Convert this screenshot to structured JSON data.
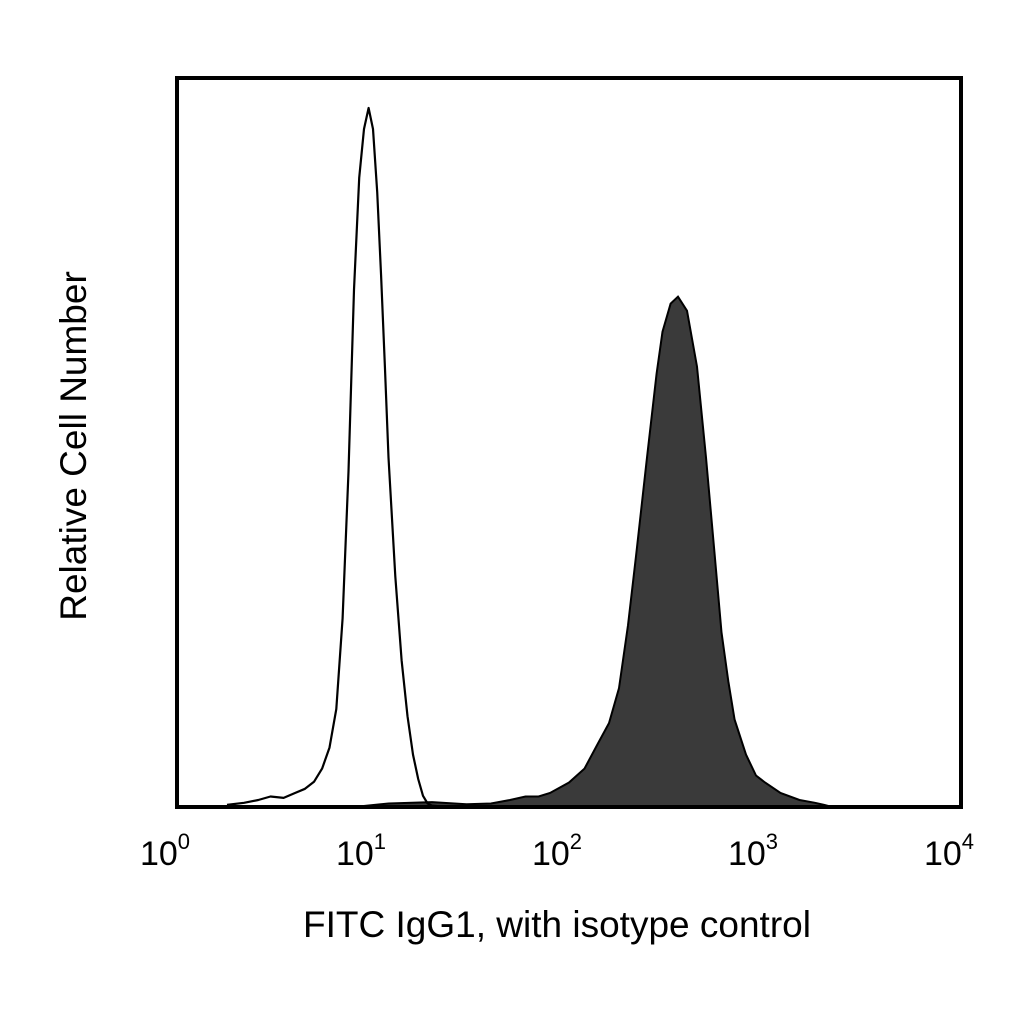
{
  "chart_data": {
    "type": "area",
    "xscale": "log",
    "xlim": [
      1,
      10000
    ],
    "ylim": [
      0,
      100
    ],
    "grid": false,
    "xlabel": "FITC IgG1, with isotype control",
    "ylabel": "Relative Cell Number",
    "xticks": [
      {
        "value": 1,
        "base": "10",
        "exp": "0"
      },
      {
        "value": 10,
        "base": "10",
        "exp": "1"
      },
      {
        "value": 100,
        "base": "10",
        "exp": "2"
      },
      {
        "value": 1000,
        "base": "10",
        "exp": "3"
      },
      {
        "value": 10000,
        "base": "10",
        "exp": "4"
      }
    ],
    "series": [
      {
        "style": "outline",
        "color": "#000000",
        "x": [
          1.8,
          2.2,
          2.6,
          3.0,
          3.5,
          4.0,
          4.5,
          5.0,
          5.5,
          6.0,
          6.5,
          7.0,
          7.5,
          8.0,
          8.5,
          9.0,
          9.5,
          10.0,
          10.5,
          11.0,
          11.5,
          12.0,
          13.0,
          14.0,
          15.0,
          16.0,
          17.0,
          18.0,
          19.0,
          20.0,
          22.0,
          25.0
        ],
        "y": [
          0.3,
          0.6,
          1.0,
          1.5,
          1.3,
          2.0,
          2.6,
          3.6,
          5.5,
          8.5,
          14,
          27,
          48,
          74,
          90,
          97,
          100,
          97,
          88,
          76,
          63,
          50,
          33,
          21,
          13,
          7.5,
          4.0,
          1.6,
          0.5,
          0.2,
          0.1,
          0
        ]
      },
      {
        "style": "filled",
        "color": "#3a3a3a",
        "x": [
          8,
          12,
          20,
          30,
          40,
          50,
          60,
          70,
          80,
          100,
          120,
          140,
          160,
          180,
          200,
          220,
          250,
          280,
          300,
          330,
          360,
          400,
          450,
          500,
          550,
          600,
          650,
          700,
          800,
          900,
          1000,
          1200,
          1500,
          1800,
          2000,
          2200
        ],
        "y": [
          0,
          0.5,
          0.7,
          0.4,
          0.5,
          1.0,
          1.5,
          1.5,
          2.0,
          3.5,
          5.5,
          9,
          12,
          17,
          26,
          36,
          50,
          62,
          68,
          72,
          73,
          71,
          63,
          50,
          37,
          25,
          18,
          12.5,
          7.5,
          4.5,
          3.5,
          2.0,
          1.0,
          0.6,
          0.3,
          0
        ]
      }
    ]
  }
}
